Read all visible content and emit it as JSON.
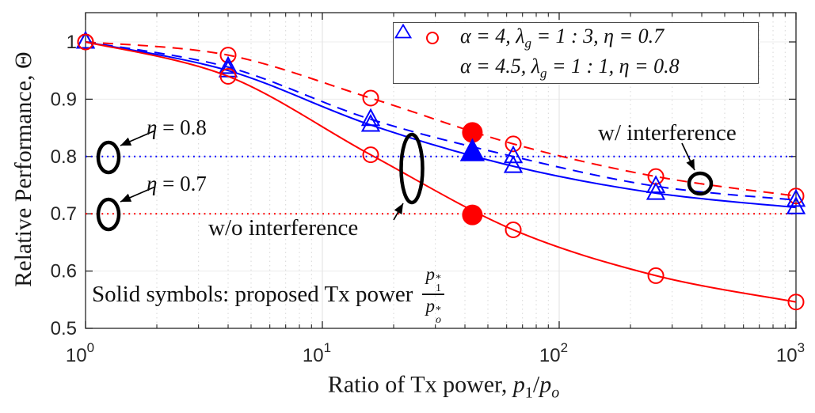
{
  "figure": {
    "background": "#ffffff",
    "axis_color": "#262626",
    "tick_label_color": "#262626"
  },
  "chart_data": {
    "type": "line",
    "title": "",
    "x_scale": "log",
    "xlim": [
      1,
      1000
    ],
    "ylim": [
      0.5,
      1.05
    ],
    "grid": "major solid light gray + minor dotted vertical, legend top-right",
    "ylabel": "Relative Performance, Θ",
    "xlabel": {
      "pre": "Ratio of Tx power, ",
      "p1": "p",
      "p1_sub": "1",
      "slash": "/",
      "p2": "p",
      "p2_sub": "o"
    },
    "x_ticks": [
      {
        "base": "10",
        "exp": "0",
        "value": 1
      },
      {
        "base": "10",
        "exp": "1",
        "value": 10
      },
      {
        "base": "10",
        "exp": "2",
        "value": 100
      },
      {
        "base": "10",
        "exp": "3",
        "value": 1000
      }
    ],
    "y_ticks": [
      {
        "label": "1",
        "value": 1.0
      },
      {
        "label": "0.9",
        "value": 0.9
      },
      {
        "label": "0.8",
        "value": 0.8
      },
      {
        "label": "0.7",
        "value": 0.7
      },
      {
        "label": "0.6",
        "value": 0.6
      },
      {
        "label": "0.5",
        "value": 0.5
      }
    ],
    "x": [
      1,
      4,
      16,
      64,
      256,
      1000
    ],
    "series": [
      {
        "name": "alpha-4-with-interference",
        "color": "#ff0000",
        "style": "dashed",
        "marker": "circle",
        "values": [
          1.0,
          0.977,
          0.902,
          0.822,
          0.765,
          0.731
        ]
      },
      {
        "name": "alpha-4p5-with-interference",
        "color": "#0000ff",
        "style": "dashed",
        "marker": "triangle",
        "values": [
          1.0,
          0.956,
          0.865,
          0.8,
          0.748,
          0.724
        ]
      },
      {
        "name": "alpha-4p5-without-interference",
        "color": "#0000ff",
        "style": "solid",
        "marker": "triangle",
        "values": [
          1.0,
          0.95,
          0.855,
          0.783,
          0.736,
          0.711
        ]
      },
      {
        "name": "alpha-4-without-interference",
        "color": "#ff0000",
        "style": "solid",
        "marker": "circle",
        "values": [
          1.0,
          0.94,
          0.803,
          0.672,
          0.592,
          0.546
        ]
      }
    ],
    "proposed_points": [
      {
        "x": 43,
        "y": 0.842,
        "marker": "circle",
        "color": "#ff0000"
      },
      {
        "x": 43,
        "y": 0.807,
        "marker": "triangle",
        "color": "#0000ff"
      },
      {
        "x": 43,
        "y": 0.698,
        "marker": "circle",
        "color": "#ff0000"
      }
    ],
    "reference_lines": [
      {
        "y": 0.8,
        "color": "#0000ff",
        "label": "η = 0.8"
      },
      {
        "y": 0.7,
        "color": "#ff0000",
        "label": "η = 0.7"
      }
    ]
  },
  "legend": {
    "items": [
      {
        "marker": "red-open-circle",
        "color": "#ff0000",
        "pre": "α = 4, λ",
        "sub": "g",
        "post": " = 1 : 3, η = 0.7"
      },
      {
        "marker": "blue-open-triangle",
        "color": "#0000ff",
        "pre": "α = 4.5, λ",
        "sub": "g",
        "post": " = 1 : 1, η = 0.8"
      }
    ]
  },
  "annotations": {
    "eta08_var": "η",
    "eta08_rest": " = 0.8",
    "eta07_var": "η",
    "eta07_rest": " = 0.7",
    "without_interference": "w/o interference",
    "with_interference": "w/ interference",
    "note_pre": "Solid symbols: proposed Tx power",
    "frac_num": "p",
    "frac_num_sup": "*",
    "frac_num_sub": "1",
    "frac_den": "p",
    "frac_den_sup": "*",
    "frac_den_sub": "o"
  }
}
